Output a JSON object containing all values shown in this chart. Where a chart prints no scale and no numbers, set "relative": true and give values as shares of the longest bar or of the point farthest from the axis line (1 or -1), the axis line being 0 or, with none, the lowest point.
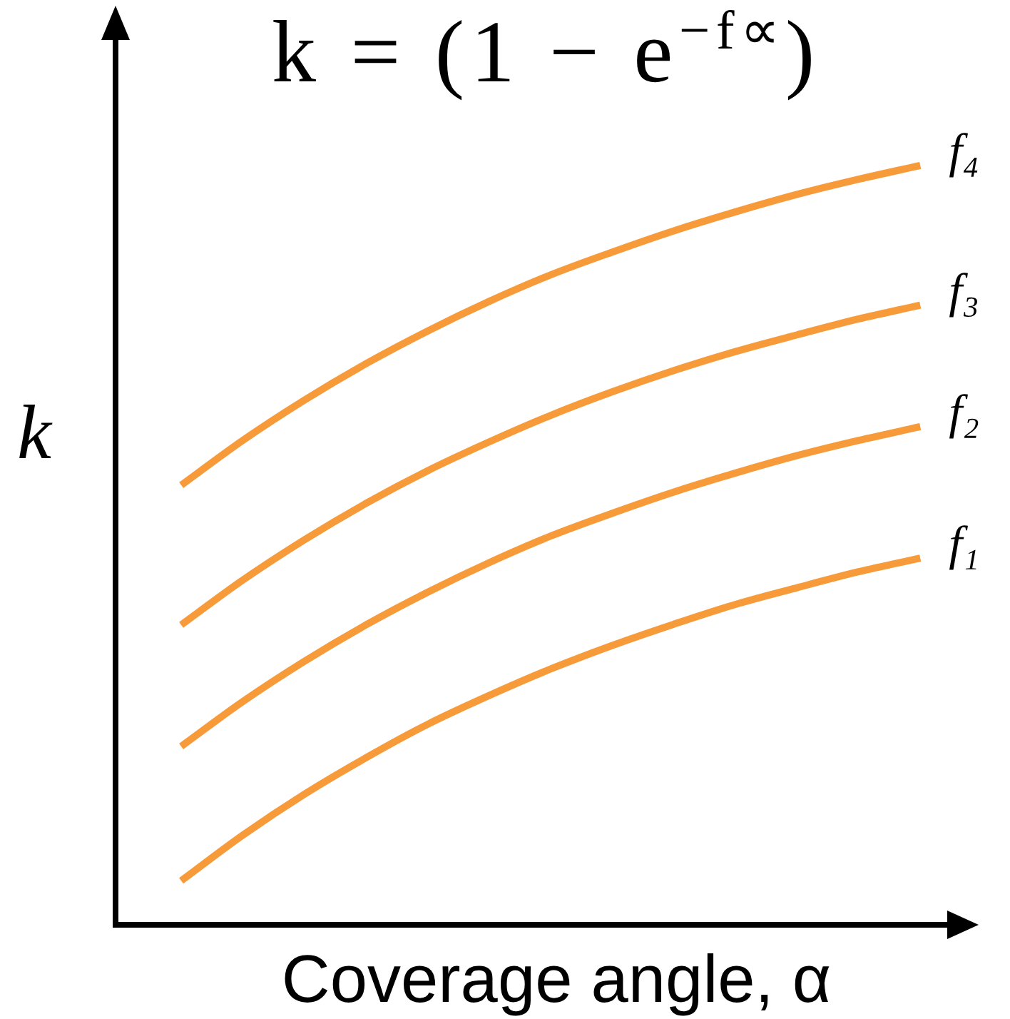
{
  "chart_data": {
    "type": "line",
    "title": "k = (1 − e$^{−f∝}$)",
    "xlabel": "Coverage angle, α",
    "ylabel": "k",
    "relative": true,
    "legend": false,
    "grid": false,
    "marker": "none",
    "line_style": "solid",
    "categories": [
      null,
      null,
      null,
      null,
      null,
      null,
      null,
      null,
      null,
      null,
      null,
      null,
      null
    ],
    "series": [
      {
        "name": "f₄",
        "color": "#f79b3a",
        "values": [
          0.579,
          0.638,
          0.691,
          0.739,
          0.782,
          0.821,
          0.856,
          0.886,
          0.914,
          0.939,
          0.962,
          0.982,
          1
        ]
      },
      {
        "name": "f₃",
        "color": "#f79b3a",
        "values": [
          0.395,
          0.454,
          0.507,
          0.555,
          0.598,
          0.636,
          0.671,
          0.702,
          0.73,
          0.755,
          0.777,
          0.798,
          0.816
        ]
      },
      {
        "name": "f₂",
        "color": "#f79b3a",
        "values": [
          0.235,
          0.294,
          0.347,
          0.395,
          0.438,
          0.477,
          0.512,
          0.542,
          0.57,
          0.595,
          0.618,
          0.638,
          0.656
        ]
      },
      {
        "name": "f₁",
        "color": "#f79b3a",
        "values": [
          0.058,
          0.118,
          0.172,
          0.22,
          0.264,
          0.302,
          0.337,
          0.368,
          0.396,
          0.422,
          0.444,
          0.465,
          0.483
        ]
      }
    ]
  }
}
